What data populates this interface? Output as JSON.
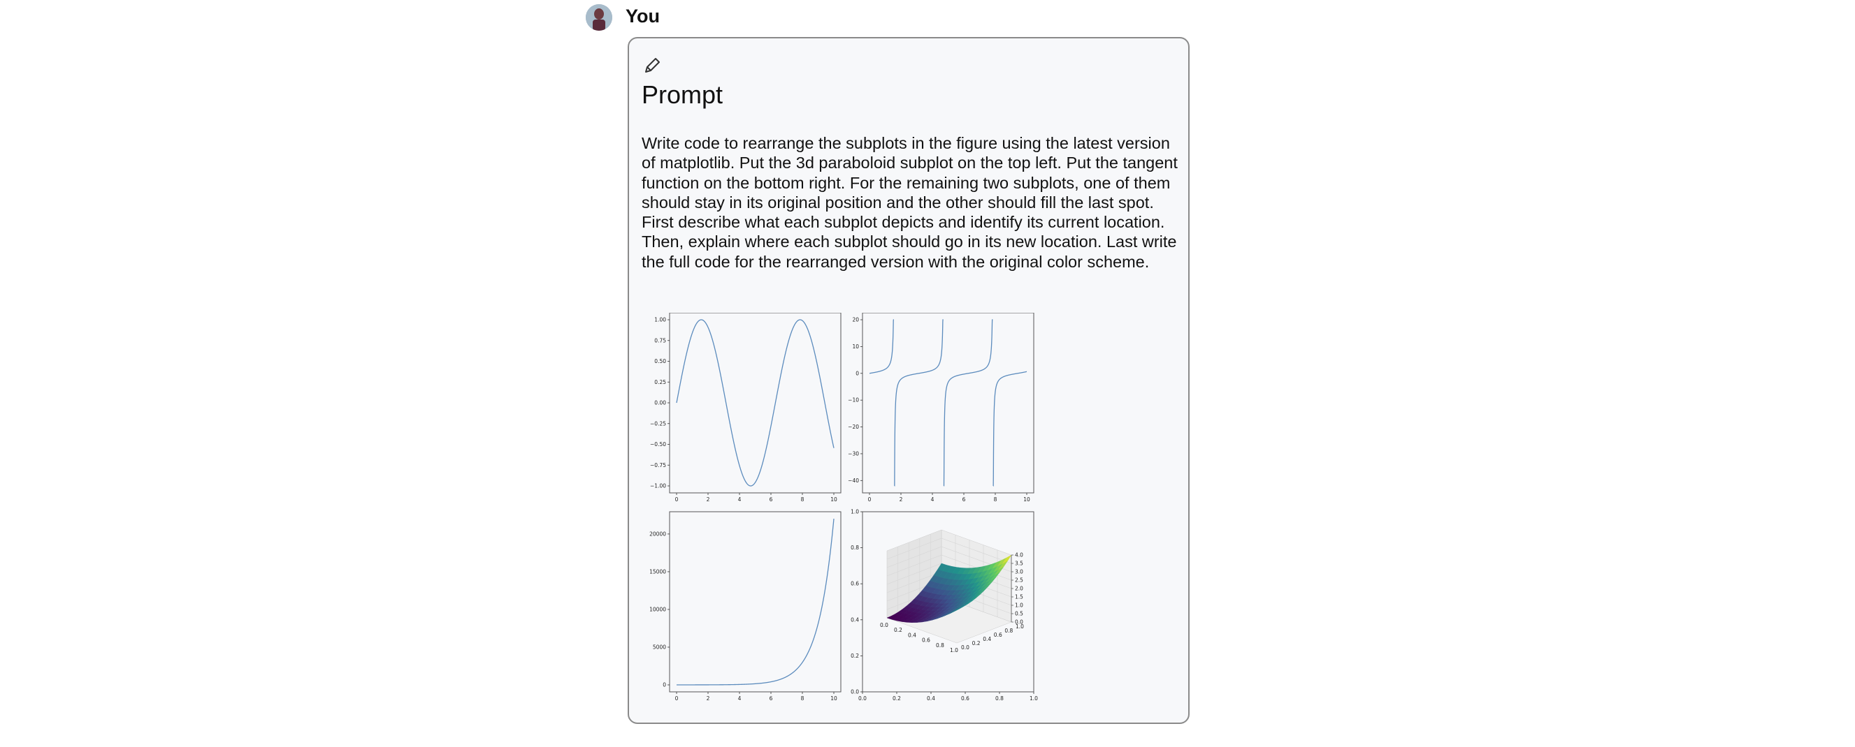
{
  "user": {
    "name": "You"
  },
  "card": {
    "title": "Prompt",
    "body": "Write code to rearrange the subplots in the figure using the latest version of matplotlib. Put the 3d paraboloid subplot on the top left. Put the tangent function on the bottom right. For the remaining two subplots, one of them should stay in its original position and the other should fill the last spot. First describe what each subplot depicts and identify its current location. Then, explain where each subplot should go in its new location.  Last write the full code for the rearranged version with the original color scheme."
  },
  "colors": {
    "line": "#5b8bbd",
    "card_bg": "#f7f8fa",
    "border": "#8a8a8a"
  },
  "icons": {
    "edit": "pencil-icon"
  },
  "chart_data": [
    {
      "type": "line",
      "position": "top-left",
      "function": "sin(x)",
      "xlim": [
        0,
        10
      ],
      "ylim": [
        -1,
        1
      ],
      "xticks": [
        "0",
        "2",
        "4",
        "6",
        "8",
        "10"
      ],
      "yticks": [
        "1.00",
        "0.75",
        "0.50",
        "0.25",
        "0.00",
        "−0.25",
        "−0.50",
        "−0.75",
        "−1.00"
      ]
    },
    {
      "type": "line",
      "position": "top-right",
      "function": "tan(x)",
      "xlim": [
        0,
        10
      ],
      "ylim": [
        -42,
        20
      ],
      "xticks": [
        "0",
        "2",
        "4",
        "6",
        "8",
        "10"
      ],
      "yticks": [
        "20",
        "10",
        "0",
        "−10",
        "−20",
        "−30",
        "−40"
      ]
    },
    {
      "type": "line",
      "position": "bottom-left",
      "function": "exp(x)",
      "xlim": [
        0,
        10
      ],
      "ylim": [
        0,
        22026
      ],
      "xticks": [
        "0",
        "2",
        "4",
        "6",
        "8",
        "10"
      ],
      "yticks": [
        "20000",
        "15000",
        "10000",
        "5000",
        "0"
      ]
    },
    {
      "type": "surface3d",
      "position": "bottom-right",
      "function": "x^2 + y^2",
      "outer_xticks": [
        "0.0",
        "0.2",
        "0.4",
        "0.6",
        "0.8",
        "1.0"
      ],
      "outer_yticks": [
        "0.0",
        "0.2",
        "0.4",
        "0.6",
        "0.8",
        "1.0"
      ],
      "x3d_ticks": [
        "0.0",
        "0.2",
        "0.4",
        "0.6",
        "0.8",
        "1.0"
      ],
      "y3d_ticks": [
        "0.0",
        "0.2",
        "0.4",
        "0.6",
        "0.8",
        "1.0"
      ],
      "z3d_ticks": [
        "4.0",
        "3.5",
        "3.0",
        "2.5",
        "2.0",
        "1.5",
        "1.0",
        "0.5",
        "0.0"
      ],
      "colormap": "viridis"
    }
  ]
}
